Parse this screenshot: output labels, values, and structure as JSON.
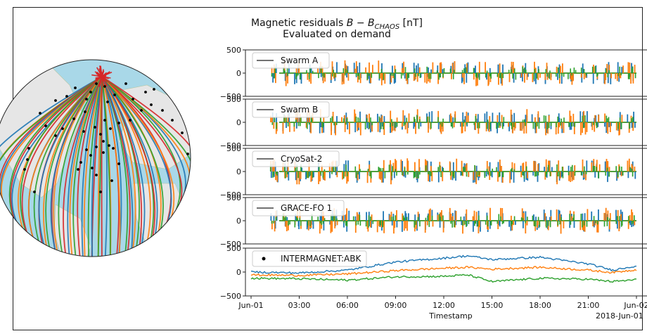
{
  "title": {
    "line1_prefix": "Magnetic residuals ",
    "line1_math": "B − B",
    "line1_sub": "CHAOS",
    "line1_suffix": " [nT]",
    "line2": "Evaluated on demand"
  },
  "globe": {
    "land_color": "#e6e6e6",
    "ocean_color": "#a9d8e8",
    "track_colors": [
      "#1f77b4",
      "#ff7f0e",
      "#2ca02c",
      "#d62728"
    ],
    "ground_station_marker": "black-dot"
  },
  "chart_data": [
    {
      "type": "line",
      "legend": "Swarm A",
      "legend_marker": "line",
      "ylim": [
        -500,
        500
      ],
      "yticks": [
        "500",
        "0",
        "−500"
      ],
      "series_colors": [
        "#1f77b4",
        "#ff7f0e",
        "#2ca02c"
      ],
      "pattern": "orbital spikes"
    },
    {
      "type": "line",
      "legend": "Swarm B",
      "legend_marker": "line",
      "ylim": [
        -500,
        500
      ],
      "yticks": [
        "500",
        "0",
        "−500"
      ],
      "series_colors": [
        "#1f77b4",
        "#ff7f0e",
        "#2ca02c"
      ],
      "pattern": "orbital spikes"
    },
    {
      "type": "line",
      "legend": "CryoSat-2",
      "legend_marker": "line",
      "ylim": [
        -500,
        500
      ],
      "yticks": [
        "500",
        "0",
        "−500"
      ],
      "series_colors": [
        "#1f77b4",
        "#ff7f0e",
        "#2ca02c"
      ],
      "pattern": "orbital spikes"
    },
    {
      "type": "line",
      "legend": "GRACE-FO 1",
      "legend_marker": "line",
      "ylim": [
        -500,
        500
      ],
      "yticks": [
        "500",
        "0",
        "−500"
      ],
      "series_colors": [
        "#1f77b4",
        "#ff7f0e",
        "#2ca02c"
      ],
      "pattern": "orbital spikes"
    },
    {
      "type": "line",
      "legend": "INTERMAGNET:ABK",
      "legend_marker": "dot",
      "ylim": [
        -500,
        500
      ],
      "yticks": [
        "500",
        "0",
        "−500"
      ],
      "xlabel": "Timestamp",
      "xtick_labels": [
        "Jun-01",
        "03:00",
        "06:00",
        "09:00",
        "12:00",
        "15:00",
        "18:00",
        "21:00",
        "Jun-02"
      ],
      "x_offset_label": "2018-Jun-01",
      "series": [
        {
          "color": "#1f77b4",
          "x_hours": [
            0,
            3,
            6,
            9,
            12,
            13.5,
            15,
            18,
            21,
            22.5,
            24
          ],
          "values": [
            0,
            -20,
            40,
            210,
            290,
            340,
            260,
            310,
            170,
            40,
            130
          ]
        },
        {
          "color": "#ff7f0e",
          "x_hours": [
            0,
            3,
            6,
            9,
            12,
            13.5,
            15,
            18,
            21,
            22.5,
            24
          ],
          "values": [
            -60,
            -70,
            -40,
            30,
            80,
            100,
            60,
            100,
            40,
            -10,
            50
          ]
        },
        {
          "color": "#2ca02c",
          "x_hours": [
            0,
            3,
            6,
            9,
            12,
            13.5,
            15,
            18,
            21,
            22.5,
            24
          ],
          "values": [
            -130,
            -140,
            -170,
            -100,
            -90,
            -60,
            -200,
            -130,
            -150,
            -200,
            -160
          ]
        }
      ]
    }
  ]
}
